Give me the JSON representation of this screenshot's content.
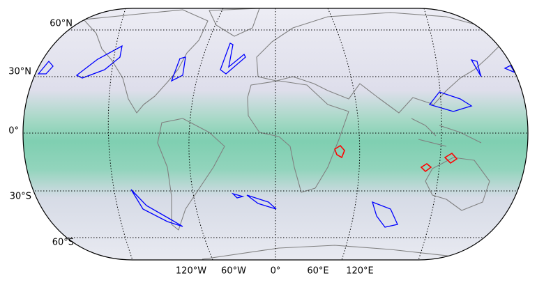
{
  "map": {
    "lat_labels": [
      "60°N",
      "30°N",
      "0°",
      "30°S",
      "60°S"
    ],
    "lon_labels": [
      "120°W",
      "60°W",
      "0°",
      "60°E",
      "120°E"
    ]
  }
}
